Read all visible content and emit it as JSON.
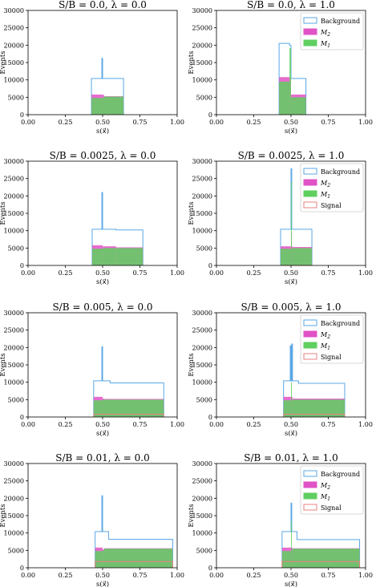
{
  "colors": {
    "background": "#5aa7e6",
    "m2": "#e052c5",
    "m1": "#5fcf5f",
    "signal": "#e88080"
  },
  "chart_data": [
    {
      "type": "bar",
      "title": "S/B = 0.0, λ = 0.0",
      "xlabel": "s(x⃗)",
      "ylabel": "Events",
      "xlim": [
        0,
        1
      ],
      "ylim": [
        0,
        30000
      ],
      "xticks": [
        "0.00",
        "0.25",
        "0.50",
        "0.75",
        "1.00"
      ],
      "yticks": [
        "0",
        "5000",
        "10000",
        "15000",
        "20000",
        "25000",
        "30000"
      ],
      "legend": [],
      "series": [
        {
          "name": "Background",
          "style": "step",
          "edges": [
            0.425,
            0.49,
            0.495,
            0.5,
            0.51,
            0.64
          ],
          "values": [
            10400,
            10400,
            16200,
            10400,
            10400
          ]
        },
        {
          "name": "M2",
          "style": "filled",
          "edges": [
            0.425,
            0.49,
            0.5,
            0.51,
            0.64
          ],
          "values": [
            5800,
            5800,
            5700,
            5300
          ]
        },
        {
          "name": "M1",
          "style": "filled",
          "edges": [
            0.425,
            0.5,
            0.51,
            0.64
          ],
          "values": [
            4800,
            5000,
            5200
          ]
        }
      ]
    },
    {
      "type": "bar",
      "title": "S/B = 0.0, λ = 1.0",
      "xlabel": "s(x⃗)",
      "ylabel": "Events",
      "xlim": [
        0,
        1
      ],
      "ylim": [
        0,
        30000
      ],
      "xticks": [
        "0.00",
        "0.25",
        "0.50",
        "0.75",
        "1.00"
      ],
      "yticks": [
        "0",
        "5000",
        "10000",
        "15000",
        "20000",
        "25000",
        "30000"
      ],
      "legend": [
        "Background",
        "M2",
        "M1"
      ],
      "series": [
        {
          "name": "Background",
          "style": "step",
          "edges": [
            0.42,
            0.49,
            0.5,
            0.51,
            0.6
          ],
          "values": [
            20500,
            20000,
            10400,
            10400
          ]
        },
        {
          "name": "M2",
          "style": "filled",
          "edges": [
            0.42,
            0.49,
            0.5,
            0.51,
            0.6
          ],
          "values": [
            10800,
            10500,
            5800,
            5800
          ]
        },
        {
          "name": "M1",
          "style": "filled",
          "edges": [
            0.42,
            0.49,
            0.5,
            0.51,
            0.6
          ],
          "values": [
            9500,
            19200,
            5000,
            5000
          ]
        }
      ]
    },
    {
      "type": "bar",
      "title": "S/B = 0.0025, λ = 0.0",
      "xlabel": "s(x⃗)",
      "ylabel": "Events",
      "xlim": [
        0,
        1
      ],
      "ylim": [
        0,
        30000
      ],
      "xticks": [
        "0.00",
        "0.25",
        "0.50",
        "0.75",
        "1.00"
      ],
      "yticks": [
        "0",
        "5000",
        "10000",
        "15000",
        "20000",
        "25000",
        "30000"
      ],
      "legend": [],
      "series": [
        {
          "name": "Background",
          "style": "step",
          "edges": [
            0.43,
            0.49,
            0.495,
            0.5,
            0.51,
            0.59,
            0.77
          ],
          "values": [
            10400,
            10400,
            21000,
            10400,
            10400,
            10200
          ]
        },
        {
          "name": "M2",
          "style": "filled",
          "edges": [
            0.43,
            0.49,
            0.5,
            0.51,
            0.59,
            0.77
          ],
          "values": [
            5800,
            5800,
            5500,
            5500,
            5200
          ]
        },
        {
          "name": "M1",
          "style": "filled",
          "edges": [
            0.43,
            0.5,
            0.51,
            0.59,
            0.77
          ],
          "values": [
            4800,
            5000,
            5000,
            5000
          ]
        }
      ]
    },
    {
      "type": "bar",
      "title": "S/B = 0.0025, λ = 1.0",
      "xlabel": "s(x⃗)",
      "ylabel": "Events",
      "xlim": [
        0,
        1
      ],
      "ylim": [
        0,
        30000
      ],
      "xticks": [
        "0.00",
        "0.25",
        "0.50",
        "0.75",
        "1.00"
      ],
      "yticks": [
        "0",
        "5000",
        "10000",
        "15000",
        "20000",
        "25000",
        "30000"
      ],
      "legend": [
        "Background",
        "M2",
        "M1",
        "Signal"
      ],
      "series": [
        {
          "name": "Background",
          "style": "step",
          "edges": [
            0.43,
            0.5,
            0.505,
            0.51,
            0.64
          ],
          "values": [
            10400,
            27800,
            10400,
            10400
          ]
        },
        {
          "name": "M2",
          "style": "filled",
          "edges": [
            0.43,
            0.5,
            0.505,
            0.51,
            0.64
          ],
          "values": [
            5500,
            9500,
            5500,
            5300
          ]
        },
        {
          "name": "M1",
          "style": "filled",
          "edges": [
            0.43,
            0.5,
            0.505,
            0.51,
            0.64
          ],
          "values": [
            4800,
            24000,
            5000,
            5000
          ]
        },
        {
          "name": "Signal",
          "style": "step",
          "edges": [
            0.43,
            0.64
          ],
          "values": [
            0
          ]
        }
      ]
    },
    {
      "type": "bar",
      "title": "S/B = 0.005, λ = 0.0",
      "xlabel": "s(x⃗)",
      "ylabel": "Events",
      "xlim": [
        0,
        1
      ],
      "ylim": [
        0,
        30000
      ],
      "xticks": [
        "0.00",
        "0.25",
        "0.50",
        "0.75",
        "1.00"
      ],
      "yticks": [
        "0",
        "5000",
        "10000",
        "15000",
        "20000",
        "25000",
        "30000"
      ],
      "legend": [],
      "series": [
        {
          "name": "Background",
          "style": "step",
          "edges": [
            0.44,
            0.49,
            0.495,
            0.5,
            0.51,
            0.55,
            0.91
          ],
          "values": [
            10400,
            10400,
            20200,
            10400,
            10400,
            9800
          ]
        },
        {
          "name": "M2",
          "style": "filled",
          "edges": [
            0.44,
            0.49,
            0.5,
            0.51,
            0.91
          ],
          "values": [
            5800,
            5800,
            5300,
            5200
          ]
        },
        {
          "name": "M1",
          "style": "filled",
          "edges": [
            0.44,
            0.5,
            0.51,
            0.91
          ],
          "values": [
            4800,
            5000,
            5000
          ]
        },
        {
          "name": "Signal",
          "style": "step",
          "edges": [
            0.44,
            0.91
          ],
          "values": [
            800
          ]
        }
      ]
    },
    {
      "type": "bar",
      "title": "S/B = 0.005, λ = 1.0",
      "xlabel": "s(x⃗)",
      "ylabel": "Events",
      "xlim": [
        0,
        1
      ],
      "ylim": [
        0,
        30000
      ],
      "xticks": [
        "0.00",
        "0.25",
        "0.50",
        "0.75",
        "1.00"
      ],
      "yticks": [
        "0",
        "5000",
        "10000",
        "15000",
        "20000",
        "25000",
        "30000"
      ],
      "legend": [
        "Background",
        "M2",
        "M1",
        "Signal"
      ],
      "series": [
        {
          "name": "Background",
          "style": "step",
          "edges": [
            0.45,
            0.495,
            0.5,
            0.505,
            0.51,
            0.55,
            0.86
          ],
          "values": [
            10400,
            20500,
            10400,
            21000,
            10400,
            9700
          ]
        },
        {
          "name": "M2",
          "style": "filled",
          "edges": [
            0.45,
            0.5,
            0.51,
            0.86
          ],
          "values": [
            5800,
            5800,
            5300
          ]
        },
        {
          "name": "M1",
          "style": "filled",
          "edges": [
            0.45,
            0.5,
            0.505,
            0.51,
            0.86
          ],
          "values": [
            4800,
            10000,
            5000,
            5000
          ]
        },
        {
          "name": "Signal",
          "style": "step",
          "edges": [
            0.45,
            0.86
          ],
          "values": [
            800
          ]
        }
      ]
    },
    {
      "type": "bar",
      "title": "S/B = 0.01, λ = 0.0",
      "xlabel": "s(x⃗)",
      "ylabel": "Events",
      "xlim": [
        0,
        1
      ],
      "ylim": [
        0,
        30000
      ],
      "xticks": [
        "0.00",
        "0.25",
        "0.50",
        "0.75",
        "1.00"
      ],
      "yticks": [
        "0",
        "5000",
        "10000",
        "15000",
        "20000",
        "25000",
        "30000"
      ],
      "legend": [],
      "series": [
        {
          "name": "Background",
          "style": "step",
          "edges": [
            0.45,
            0.49,
            0.495,
            0.5,
            0.51,
            0.54,
            0.97
          ],
          "values": [
            10400,
            10400,
            20700,
            10400,
            10400,
            8200
          ]
        },
        {
          "name": "M2",
          "style": "filled",
          "edges": [
            0.45,
            0.49,
            0.5,
            0.51,
            0.97
          ],
          "values": [
            5800,
            5800,
            5300,
            5600
          ]
        },
        {
          "name": "M1",
          "style": "filled",
          "edges": [
            0.45,
            0.5,
            0.51,
            0.97
          ],
          "values": [
            4800,
            5000,
            5500
          ]
        },
        {
          "name": "Signal",
          "style": "step",
          "edges": [
            0.45,
            0.97
          ],
          "values": [
            1800
          ]
        }
      ]
    },
    {
      "type": "bar",
      "title": "S/B = 0.01, λ = 1.0",
      "xlabel": "s(x⃗)",
      "ylabel": "Events",
      "xlim": [
        0,
        1
      ],
      "ylim": [
        0,
        30000
      ],
      "xticks": [
        "0.00",
        "0.25",
        "0.50",
        "0.75",
        "1.00"
      ],
      "yticks": [
        "0",
        "5000",
        "10000",
        "15000",
        "20000",
        "25000",
        "30000"
      ],
      "legend": [
        "Background",
        "M2",
        "M1",
        "Signal"
      ],
      "series": [
        {
          "name": "Background",
          "style": "step",
          "edges": [
            0.44,
            0.5,
            0.505,
            0.51,
            0.54,
            0.96
          ],
          "values": [
            10400,
            18600,
            10400,
            10400,
            8100
          ]
        },
        {
          "name": "M2",
          "style": "filled",
          "edges": [
            0.44,
            0.5,
            0.51,
            0.96
          ],
          "values": [
            5800,
            5800,
            5600
          ]
        },
        {
          "name": "M1",
          "style": "filled",
          "edges": [
            0.44,
            0.5,
            0.505,
            0.51,
            0.96
          ],
          "values": [
            4800,
            13500,
            5000,
            5500
          ]
        },
        {
          "name": "Signal",
          "style": "step",
          "edges": [
            0.44,
            0.96
          ],
          "values": [
            1800
          ]
        }
      ]
    }
  ]
}
